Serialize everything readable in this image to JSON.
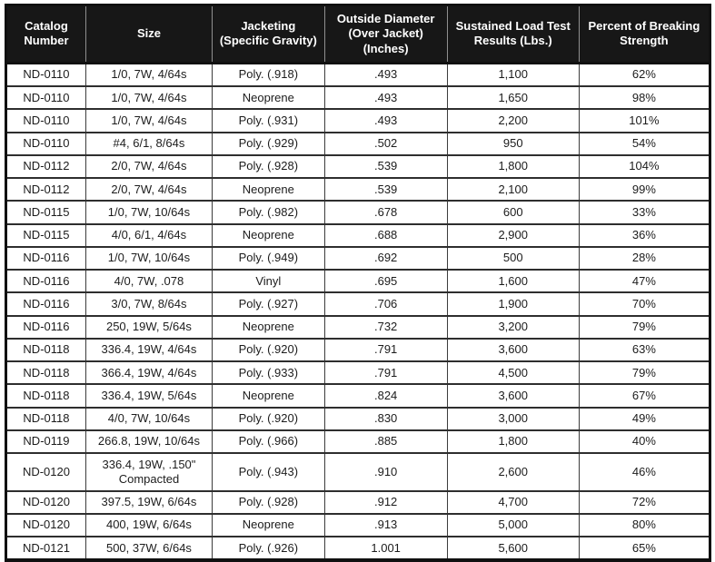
{
  "table": {
    "columns": [
      {
        "id": "catalog-number",
        "label": "Catalog\nNumber"
      },
      {
        "id": "size",
        "label": "Size"
      },
      {
        "id": "jacketing",
        "label": "Jacketing\n(Specific Gravity)"
      },
      {
        "id": "outside-diameter",
        "label": "Outside Diameter\n(Over Jacket)\n(Inches)"
      },
      {
        "id": "sustained-load",
        "label": "Sustained Load Test\nResults (Lbs.)"
      },
      {
        "id": "percent-breaking-strength",
        "label": "Percent of Breaking\nStrength"
      }
    ],
    "rows": [
      [
        "ND-0110",
        "1/0, 7W, 4/64s",
        "Poly. (.918)",
        ".493",
        "1,100",
        "62%"
      ],
      [
        "ND-0110",
        "1/0, 7W, 4/64s",
        "Neoprene",
        ".493",
        "1,650",
        "98%"
      ],
      [
        "ND-0110",
        "1/0, 7W, 4/64s",
        "Poly. (.931)",
        ".493",
        "2,200",
        "101%"
      ],
      [
        "ND-0110",
        "#4, 6/1, 8/64s",
        "Poly. (.929)",
        ".502",
        "950",
        "54%"
      ],
      [
        "ND-0112",
        "2/0, 7W, 4/64s",
        "Poly. (.928)",
        ".539",
        "1,800",
        "104%"
      ],
      [
        "ND-0112",
        "2/0, 7W, 4/64s",
        "Neoprene",
        ".539",
        "2,100",
        "99%"
      ],
      [
        "ND-0115",
        "1/0, 7W, 10/64s",
        "Poly. (.982)",
        ".678",
        "600",
        "33%"
      ],
      [
        "ND-0115",
        "4/0, 6/1, 4/64s",
        "Neoprene",
        ".688",
        "2,900",
        "36%"
      ],
      [
        "ND-0116",
        "1/0, 7W, 10/64s",
        "Poly. (.949)",
        ".692",
        "500",
        "28%"
      ],
      [
        "ND-0116",
        "4/0, 7W, .078",
        "Vinyl",
        ".695",
        "1,600",
        "47%"
      ],
      [
        "ND-0116",
        "3/0, 7W, 8/64s",
        "Poly. (.927)",
        ".706",
        "1,900",
        "70%"
      ],
      [
        "ND-0116",
        "250, 19W, 5/64s",
        "Neoprene",
        ".732",
        "3,200",
        "79%"
      ],
      [
        "ND-0118",
        "336.4, 19W, 4/64s",
        "Poly. (.920)",
        ".791",
        "3,600",
        "63%"
      ],
      [
        "ND-0118",
        "366.4, 19W, 4/64s",
        "Poly. (.933)",
        ".791",
        "4,500",
        "79%"
      ],
      [
        "ND-0118",
        "336.4, 19W, 5/64s",
        "Neoprene",
        ".824",
        "3,600",
        "67%"
      ],
      [
        "ND-0118",
        "4/0, 7W, 10/64s",
        "Poly. (.920)",
        ".830",
        "3,000",
        "49%"
      ],
      [
        "ND-0119",
        "266.8, 19W, 10/64s",
        "Poly. (.966)",
        ".885",
        "1,800",
        "40%"
      ],
      [
        "ND-0120",
        "336.4, 19W, .150\"\nCompacted",
        "Poly. (.943)",
        ".910",
        "2,600",
        "46%"
      ],
      [
        "ND-0120",
        "397.5, 19W, 6/64s",
        "Poly. (.928)",
        ".912",
        "4,700",
        "72%"
      ],
      [
        "ND-0120",
        "400, 19W, 6/64s",
        "Neoprene",
        ".913",
        "5,000",
        "80%"
      ],
      [
        "ND-0121",
        "500, 37W, 6/64s",
        "Poly. (.926)",
        "1.001",
        "5,600",
        "65%"
      ]
    ]
  }
}
